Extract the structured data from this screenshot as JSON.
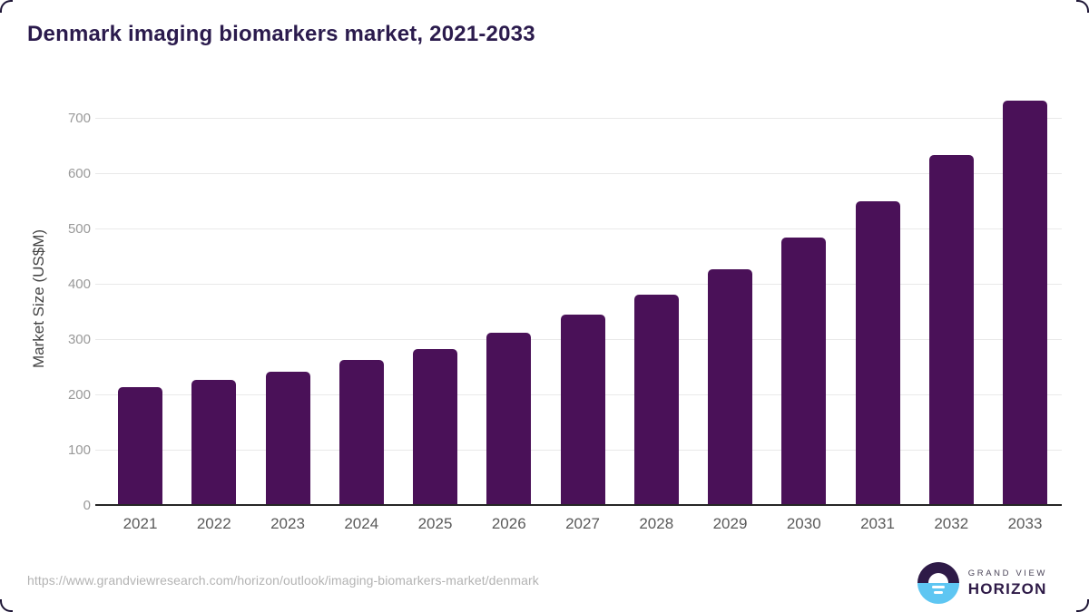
{
  "title": "Denmark imaging biomarkers market, 2021-2033",
  "chart_data": {
    "type": "bar",
    "title": "Denmark imaging biomarkers market, 2021-2033",
    "categories": [
      "2021",
      "2022",
      "2023",
      "2024",
      "2025",
      "2026",
      "2027",
      "2028",
      "2029",
      "2030",
      "2031",
      "2032",
      "2033"
    ],
    "values": [
      214,
      227,
      243,
      263,
      284,
      312,
      345,
      382,
      428,
      484,
      551,
      634,
      732
    ],
    "xlabel": "",
    "ylabel": "Market Size (US$M)",
    "ylim": [
      0,
      750
    ],
    "yticks": [
      0,
      100,
      200,
      300,
      400,
      500,
      600,
      700
    ],
    "grid": true,
    "legend": "none",
    "bar_color": "#4a1158"
  },
  "footer": {
    "source_url": "https://www.grandviewresearch.com/horizon/outlook/imaging-biomarkers-market/denmark",
    "logo": {
      "top_text": "GRAND VIEW",
      "bottom_text": "HORIZON",
      "mark_icon": "horizon-sunrise-icon"
    }
  },
  "colors": {
    "bar": "#4a1158",
    "title": "#2b1b4d",
    "axis_line": "#262626",
    "gridline": "#e9e9e9",
    "y_tick_label": "#999999",
    "x_tick_label": "#5a5a5a",
    "url_text": "#b3b3b3",
    "corner_border": "#1d1535",
    "logo_dark": "#2e1a47",
    "logo_blue": "#5ec6f2"
  }
}
